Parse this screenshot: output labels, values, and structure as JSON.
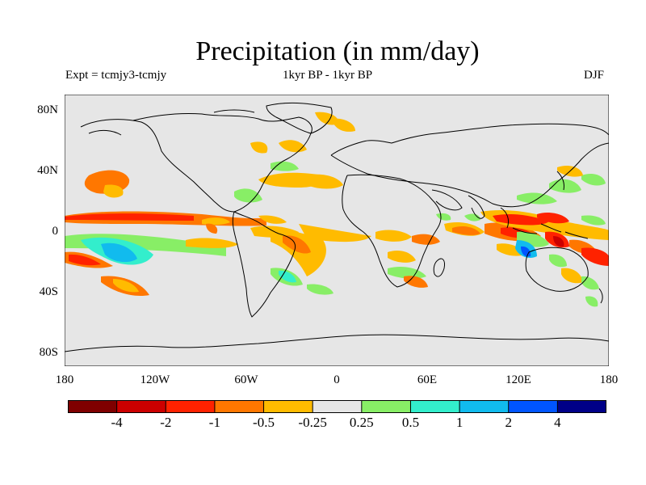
{
  "title": "Precipitation (in mm/day)",
  "subtitle_left": "Expt = tcmjy3-tcmjy",
  "subtitle_center": "1kyr BP - 1kyr BP",
  "subtitle_right": "DJF",
  "y_ticks": [
    "80N",
    "40N",
    "0",
    "40S",
    "80S"
  ],
  "x_ticks": [
    "180",
    "120W",
    "60W",
    "0",
    "60E",
    "120E",
    "180"
  ],
  "colorbar": {
    "colors": [
      "#7f0000",
      "#cc0000",
      "#ff2200",
      "#ff7700",
      "#ffbb00",
      "#e6e6e6",
      "#88ee66",
      "#33eecc",
      "#11bbee",
      "#0055ff",
      "#000088"
    ],
    "labels": [
      "-4",
      "-2",
      "-1",
      "-0.5",
      "-0.25",
      "0.25",
      "0.5",
      "1",
      "2",
      "4"
    ]
  },
  "chart_data": {
    "type": "heatmap",
    "title": "Precipitation (in mm/day)",
    "xlim": [
      -180,
      180
    ],
    "ylim": [
      -90,
      90
    ],
    "levels": [
      -4,
      -2,
      -1,
      -0.5,
      -0.25,
      0.25,
      0.5,
      1,
      2,
      4
    ],
    "anomaly_regions": [
      {
        "lon": -150,
        "lat": 5,
        "value": -1
      },
      {
        "lon": -155,
        "lat": 35,
        "value": -0.5
      },
      {
        "lon": -150,
        "lat": -18,
        "value": 1
      },
      {
        "lon": -170,
        "lat": -20,
        "value": -1
      },
      {
        "lon": -140,
        "lat": -35,
        "value": -1
      },
      {
        "lon": -120,
        "lat": -10,
        "value": 0.5
      },
      {
        "lon": -40,
        "lat": -8,
        "value": -0.5
      },
      {
        "lon": -35,
        "lat": -35,
        "value": 0.5
      },
      {
        "lon": -30,
        "lat": 38,
        "value": -0.5
      },
      {
        "lon": 50,
        "lat": -5,
        "value": -1
      },
      {
        "lon": 80,
        "lat": -8,
        "value": -0.5
      },
      {
        "lon": 40,
        "lat": -25,
        "value": 0.5
      },
      {
        "lon": 115,
        "lat": 5,
        "value": -1
      },
      {
        "lon": 120,
        "lat": -15,
        "value": 2
      },
      {
        "lon": 145,
        "lat": -5,
        "value": -1
      },
      {
        "lon": 135,
        "lat": 25,
        "value": 0.5
      },
      {
        "lon": 175,
        "lat": -15,
        "value": -1
      },
      {
        "lon": 0,
        "lat": 70,
        "value": -0.5
      }
    ]
  }
}
